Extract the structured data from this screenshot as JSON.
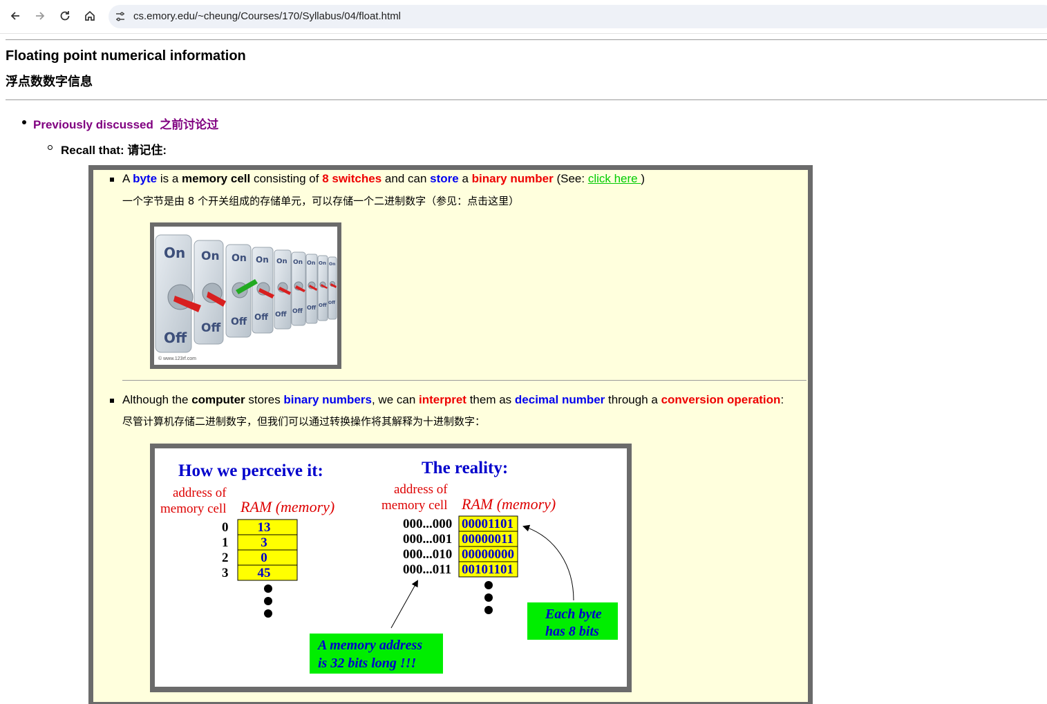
{
  "browser": {
    "url": "cs.emory.edu/~cheung/Courses/170/Syllabus/04/float.html"
  },
  "header": {
    "title_en": "Floating point numerical information",
    "title_cn": "浮点数数字信息"
  },
  "outline": {
    "previously": "Previously discussed  之前讨论过",
    "recall": "Recall that: 请记住:"
  },
  "item1": {
    "w1": "A ",
    "w2": "byte",
    "w3": " is a ",
    "w4": "memory cell",
    "w5": " consisting of ",
    "w6": "8 switches",
    "w7": " and can ",
    "w8": "store",
    "w9": " a ",
    "w10": "binary number",
    "w11": " (See: ",
    "link": "click here ",
    "w12": ")",
    "cn": "一个字节是由 8 个开关组成的存储单元，可以存储一个二进制数字（参见：点击这里）"
  },
  "switch_image": {
    "on_label": "On",
    "off_label": "Off",
    "credit": "© www.123rf.com"
  },
  "item2": {
    "w1": "Although the ",
    "w2": "computer",
    "w3": " stores ",
    "w4": "binary numbers",
    "w5": ", we can ",
    "w6": "interpret",
    "w7": " them as ",
    "w8": "decimal number",
    "w9": " through a ",
    "w10": "conversion operation",
    "w11": ":",
    "cn": "尽管计算机存储二进制数字，但我们可以通过转换操作将其解释为十进制数字："
  },
  "diagram": {
    "perceive_title": "How we perceive it:",
    "reality_title": "The reality:",
    "addr_label_1": "address of",
    "addr_label_2": "memory cell",
    "ram_label": "RAM (memory)",
    "perceived_addresses": [
      "0",
      "1",
      "2",
      "3"
    ],
    "perceived_values": [
      "13",
      "3",
      "0",
      "45"
    ],
    "real_addresses": [
      "000...000",
      "000...001",
      "000...010",
      "000...011"
    ],
    "real_values": [
      "00001101",
      "00000011",
      "00000000",
      "00101101"
    ],
    "note_address_1": "A memory address",
    "note_address_2": "is 32 bits long !!!",
    "note_byte_1": "Each byte",
    "note_byte_2": "has 8 bits"
  }
}
